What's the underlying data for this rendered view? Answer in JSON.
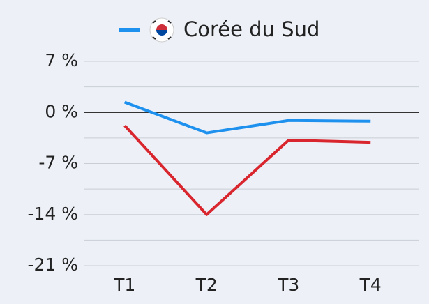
{
  "chart_data": {
    "type": "line",
    "categories": [
      "T1",
      "T2",
      "T3",
      "T4"
    ],
    "series": [
      {
        "name": "Corée du Sud",
        "color": "#1e90ee",
        "values": [
          1.4,
          -2.8,
          -1.1,
          -1.2
        ]
      },
      {
        "color": "#d9252d",
        "values": [
          -1.8,
          -14.0,
          -3.8,
          -4.1
        ]
      }
    ],
    "ylim": [
      -21,
      7
    ],
    "yticks": [
      {
        "value": 7,
        "label": "7 %"
      },
      {
        "value": 0,
        "label": "0 %"
      },
      {
        "value": -7,
        "label": "-7 %"
      },
      {
        "value": -14,
        "label": "-14 %"
      },
      {
        "value": -21,
        "label": "-21 %"
      }
    ],
    "minor_yticks": [
      3.5,
      -3.5,
      -10.5,
      -17.5
    ],
    "grid": true
  }
}
